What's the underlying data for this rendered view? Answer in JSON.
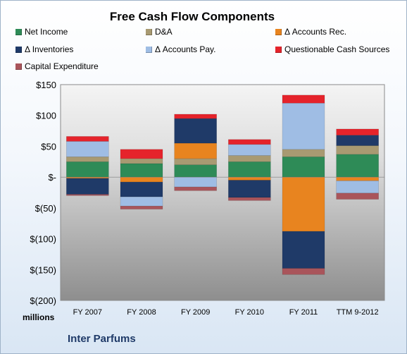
{
  "chart_data": {
    "type": "bar",
    "stacked": true,
    "title": "Free Cash Flow Components",
    "xlabel": "",
    "ylabel": "",
    "unit_label": "millions",
    "footer": "Inter Parfums",
    "categories": [
      "FY 2007",
      "FY 2008",
      "FY 2009",
      "FY 2010",
      "FY 2011",
      "TTM 9-2012"
    ],
    "yticks": [
      "$150",
      "$100",
      "$50",
      "$-",
      "$(50)",
      "$(100)",
      "$(150)",
      "$(200)"
    ],
    "ylim": [
      -200,
      150
    ],
    "grid": false,
    "legend_position": "top",
    "series": [
      {
        "name": "Net Income",
        "color": "#2e8b57",
        "values": [
          25,
          22,
          20,
          25,
          33,
          37
        ]
      },
      {
        "name": "D&A",
        "color": "#a89a72",
        "values": [
          8,
          8,
          10,
          10,
          12,
          14
        ]
      },
      {
        "name": "Δ Accounts Rec.",
        "color": "#e8841f",
        "values": [
          -2,
          -8,
          25,
          -5,
          -88,
          -6
        ]
      },
      {
        "name": "Δ Inventories",
        "color": "#1f3a68",
        "values": [
          -26,
          -24,
          40,
          -28,
          -60,
          17
        ]
      },
      {
        "name": "Δ Accounts Pay.",
        "color": "#9fbde4",
        "values": [
          25,
          -15,
          -16,
          18,
          75,
          -20
        ]
      },
      {
        "name": "Questionable Cash Sources",
        "color": "#e5232b",
        "values": [
          8,
          15,
          7,
          8,
          13,
          10
        ]
      },
      {
        "name": "Capital Expenditure",
        "color": "#a9555b",
        "values": [
          -2,
          -5,
          -6,
          -5,
          -10,
          -10
        ]
      }
    ]
  }
}
